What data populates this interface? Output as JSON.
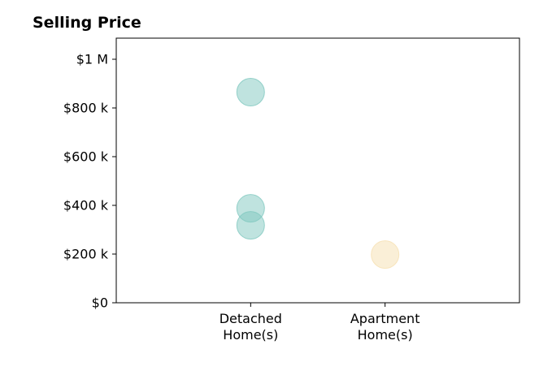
{
  "chart_data": {
    "type": "scatter",
    "title": "Selling Price",
    "xlabel": "",
    "ylabel": "",
    "categories": [
      [
        "Detached",
        "Home(s)"
      ],
      [
        "Apartment",
        "Home(s)"
      ]
    ],
    "x_range": [
      -1,
      2
    ],
    "ylim": [
      0,
      1000000
    ],
    "yticks": [
      0,
      200000,
      400000,
      600000,
      800000,
      1000000
    ],
    "ytick_labels": [
      "$0",
      "$200 k",
      "$400 k",
      "$600 k",
      "$800 k",
      "$1 M"
    ],
    "grid": false,
    "series": [
      {
        "category": "Detached Home(s)",
        "color": "#7fc8bf",
        "points": [
          {
            "x": 0,
            "y": 865000
          },
          {
            "x": 0,
            "y": 388000
          },
          {
            "x": 0,
            "y": 318000
          }
        ]
      },
      {
        "category": "Apartment Home(s)",
        "color": "#f6e0b0",
        "points": [
          {
            "x": 1,
            "y": 198000
          }
        ]
      }
    ]
  }
}
